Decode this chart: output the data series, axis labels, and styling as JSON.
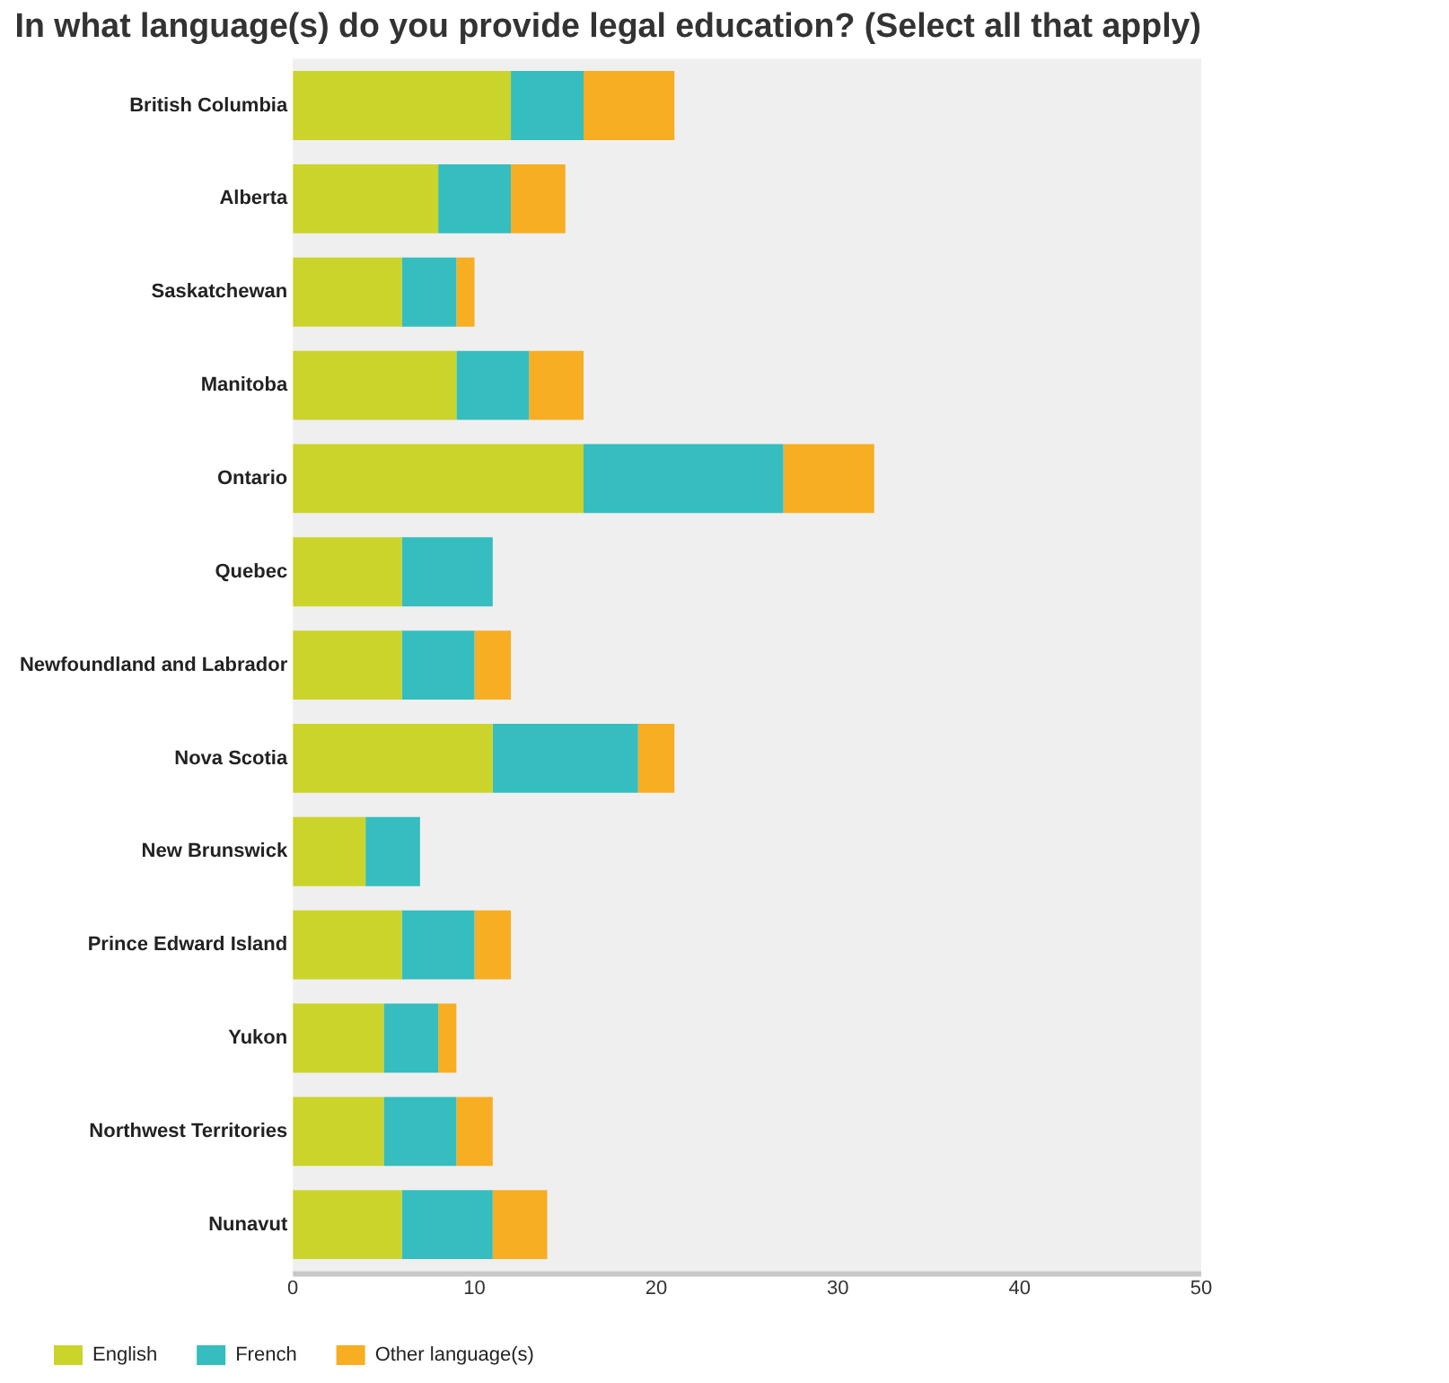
{
  "chart_data": {
    "type": "bar",
    "orientation": "horizontal",
    "stacked": true,
    "title": "In what language(s) do you provide legal education? (Select all that apply)",
    "categories": [
      "British Columbia",
      "Alberta",
      "Saskatchewan",
      "Manitoba",
      "Ontario",
      "Quebec",
      "Newfoundland and Labrador",
      "Nova Scotia",
      "New Brunswick",
      "Prince Edward Island",
      "Yukon",
      "Northwest Territories",
      "Nunavut"
    ],
    "series": [
      {
        "name": "English",
        "color": "#cbd42a",
        "values": [
          12,
          8,
          6,
          9,
          16,
          6,
          6,
          11,
          4,
          6,
          5,
          5,
          6
        ]
      },
      {
        "name": "French",
        "color": "#35bdbf",
        "values": [
          4,
          4,
          3,
          4,
          11,
          5,
          4,
          8,
          3,
          4,
          3,
          4,
          5
        ]
      },
      {
        "name": "Other language(s)",
        "color": "#f7ae22",
        "values": [
          5,
          3,
          1,
          3,
          5,
          0,
          2,
          2,
          0,
          2,
          1,
          2,
          3
        ]
      }
    ],
    "xlim": [
      0,
      50
    ],
    "xticks": [
      0,
      10,
      20,
      30,
      40,
      50
    ],
    "grid": false,
    "legend": "bottom left"
  }
}
